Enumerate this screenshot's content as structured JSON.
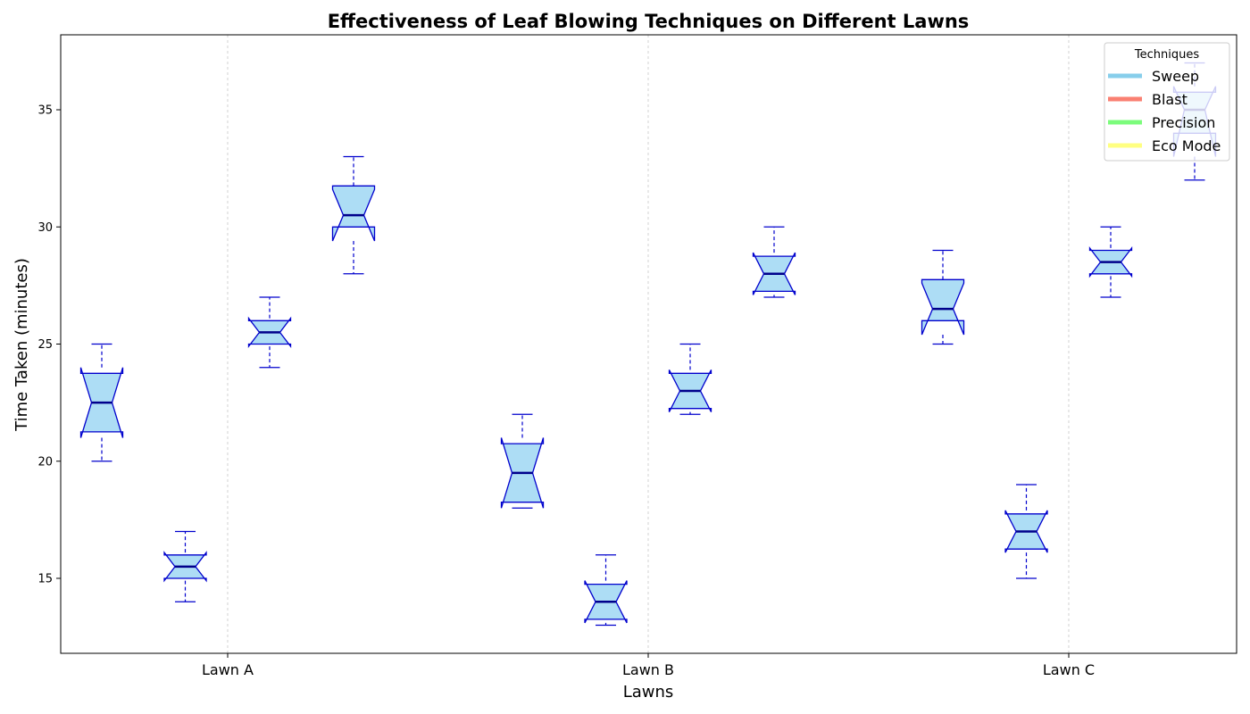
{
  "chart_data": {
    "type": "box",
    "title": "Effectiveness of Leaf Blowing Techniques on Different Lawns",
    "xlabel": "Lawns",
    "ylabel": "Time Taken (minutes)",
    "categories": [
      "Lawn A",
      "Lawn B",
      "Lawn C"
    ],
    "ylim": [
      11.8,
      38.2
    ],
    "yticks": [
      15,
      20,
      25,
      30,
      35
    ],
    "grid": "vertical dashed lines at category ticks",
    "notched": true,
    "legend": {
      "title": "Techniques",
      "position": "top-right",
      "entries": [
        {
          "label": "Sweep",
          "color": "#87CEEB"
        },
        {
          "label": "Blast",
          "color": "#FA8072"
        },
        {
          "label": "Precision",
          "color": "#7CFC7C"
        },
        {
          "label": "Eco Mode",
          "color": "#FFFF80"
        }
      ]
    },
    "series": [
      {
        "category": "Lawn A",
        "slot": 0,
        "whisker_low": 20,
        "q1": 21.25,
        "median": 22.5,
        "q3": 23.75,
        "whisker_high": 25,
        "notch_low": 21.0,
        "notch_high": 24.0
      },
      {
        "category": "Lawn A",
        "slot": 1,
        "whisker_low": 14,
        "q1": 15,
        "median": 15.5,
        "q3": 16,
        "whisker_high": 17,
        "notch_low": 14.9,
        "notch_high": 16.1
      },
      {
        "category": "Lawn A",
        "slot": 2,
        "whisker_low": 24,
        "q1": 25,
        "median": 25.5,
        "q3": 26,
        "whisker_high": 27,
        "notch_low": 24.9,
        "notch_high": 26.1
      },
      {
        "category": "Lawn A",
        "slot": 3,
        "whisker_low": 28,
        "q1": 30,
        "median": 30.5,
        "q3": 31.75,
        "whisker_high": 33,
        "notch_low": 29.4,
        "notch_high": 31.6
      },
      {
        "category": "Lawn B",
        "slot": 0,
        "whisker_low": 18,
        "q1": 18.25,
        "median": 19.5,
        "q3": 20.75,
        "whisker_high": 22,
        "notch_low": 18.0,
        "notch_high": 21.0
      },
      {
        "category": "Lawn B",
        "slot": 1,
        "whisker_low": 13,
        "q1": 13.25,
        "median": 14,
        "q3": 14.75,
        "whisker_high": 16,
        "notch_low": 13.1,
        "notch_high": 14.9
      },
      {
        "category": "Lawn B",
        "slot": 2,
        "whisker_low": 22,
        "q1": 22.25,
        "median": 23,
        "q3": 23.75,
        "whisker_high": 25,
        "notch_low": 22.1,
        "notch_high": 23.9
      },
      {
        "category": "Lawn B",
        "slot": 3,
        "whisker_low": 27,
        "q1": 27.25,
        "median": 28,
        "q3": 28.75,
        "whisker_high": 30,
        "notch_low": 27.1,
        "notch_high": 28.9
      },
      {
        "category": "Lawn C",
        "slot": 0,
        "whisker_low": 25,
        "q1": 26,
        "median": 26.5,
        "q3": 27.75,
        "whisker_high": 29,
        "notch_low": 25.4,
        "notch_high": 27.6
      },
      {
        "category": "Lawn C",
        "slot": 1,
        "whisker_low": 15,
        "q1": 16.25,
        "median": 17,
        "q3": 17.75,
        "whisker_high": 19,
        "notch_low": 16.1,
        "notch_high": 17.9
      },
      {
        "category": "Lawn C",
        "slot": 2,
        "whisker_low": 27,
        "q1": 28,
        "median": 28.5,
        "q3": 29,
        "whisker_high": 30,
        "notch_low": 27.9,
        "notch_high": 29.1
      },
      {
        "category": "Lawn C",
        "slot": 3,
        "whisker_low": 32,
        "q1": 34,
        "median": 35,
        "q3": 35.75,
        "whisker_high": 37,
        "notch_low": 33.0,
        "notch_high": 36.0
      }
    ],
    "colors": {
      "box_fill": "#ADDDF5",
      "box_edge": "#0000CD",
      "median": "#00008B",
      "grid": "#C8C8C8"
    }
  }
}
